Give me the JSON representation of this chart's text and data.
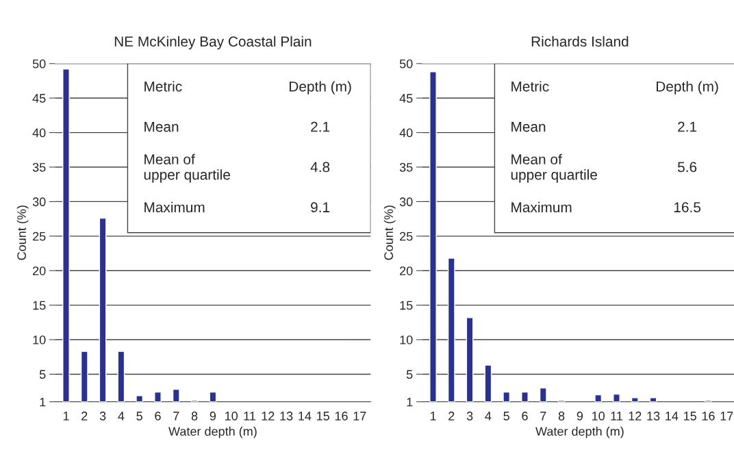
{
  "chart_data": [
    {
      "type": "bar",
      "title": "NE McKinley Bay Coastal Plain",
      "xlabel": "Water depth (m)",
      "ylabel": "Count (%)",
      "categories": [
        "1",
        "2",
        "3",
        "4",
        "5",
        "6",
        "7",
        "8",
        "9",
        "10",
        "11",
        "12",
        "13",
        "14",
        "15",
        "16",
        "17"
      ],
      "values": [
        49.2,
        8.3,
        27.6,
        8.3,
        1.9,
        2.4,
        2.8,
        1.2,
        2.4,
        null,
        null,
        null,
        null,
        null,
        null,
        null,
        null
      ],
      "color": "#2b3190",
      "ylim": [
        1,
        50
      ],
      "yticks": [
        1,
        5,
        10,
        15,
        20,
        25,
        30,
        35,
        40,
        45,
        50
      ],
      "grid": "y",
      "annotations": [
        "Metric",
        "Depth (m)",
        "Mean",
        "2.1",
        "Mean of\nupper quartile",
        "4.8",
        "Maximum",
        "9.1"
      ]
    },
    {
      "type": "bar",
      "title": "Richards Island",
      "xlabel": "Water depth (m)",
      "ylabel": "Count (%)",
      "categories": [
        "1",
        "2",
        "3",
        "4",
        "5",
        "6",
        "7",
        "8",
        "9",
        "10",
        "11",
        "12",
        "13",
        "14",
        "15",
        "16",
        "17"
      ],
      "values": [
        48.8,
        21.8,
        13.2,
        6.3,
        2.4,
        2.4,
        3.0,
        1.2,
        null,
        2.0,
        2.1,
        1.6,
        1.6,
        null,
        null,
        1.2,
        null
      ],
      "color": "#2b3190",
      "ylim": [
        1,
        50
      ],
      "yticks": [
        1,
        5,
        10,
        15,
        20,
        25,
        30,
        35,
        40,
        45,
        50
      ],
      "grid": "y",
      "annotations": [
        "Metric",
        "Depth (m)",
        "Mean",
        "2.1",
        "Mean of\nupper quartile",
        "5.6",
        "Maximum",
        "16.5"
      ]
    }
  ]
}
